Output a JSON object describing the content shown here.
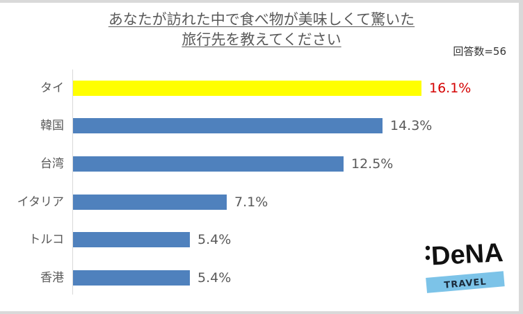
{
  "title": {
    "line1": "あなたが訪れた中で食べ物が美味しくて驚いた",
    "line2": "旅行先を教えてください"
  },
  "respondents_label": "回答数=56",
  "logo": {
    "brand": ":DeNA",
    "sub": "TRAVEL"
  },
  "colors": {
    "highlight_bar": "#ffff00",
    "default_bar": "#4f81bd",
    "highlight_label": "#d40000",
    "default_label": "#595959"
  },
  "bars": [
    {
      "label": "タイ",
      "value": 16.1,
      "display": "16.1%",
      "highlight": true
    },
    {
      "label": "韓国",
      "value": 14.3,
      "display": "14.3%",
      "highlight": false
    },
    {
      "label": "台湾",
      "value": 12.5,
      "display": "12.5%",
      "highlight": false
    },
    {
      "label": "イタリア",
      "value": 7.1,
      "display": "7.1%",
      "highlight": false
    },
    {
      "label": "トルコ",
      "value": 5.4,
      "display": "5.4%",
      "highlight": false
    },
    {
      "label": "香港",
      "value": 5.4,
      "display": "5.4%",
      "highlight": false
    }
  ],
  "chart_data": {
    "type": "bar",
    "orientation": "horizontal",
    "title": "あなたが訪れた中で食べ物が美味しくて驚いた旅行先を教えてください",
    "subtitle": "回答数=56",
    "categories": [
      "タイ",
      "韓国",
      "台湾",
      "イタリア",
      "トルコ",
      "香港"
    ],
    "values": [
      16.1,
      14.3,
      12.5,
      7.1,
      5.4,
      5.4
    ],
    "unit": "%",
    "xlabel": "",
    "ylabel": "",
    "grid": false,
    "legend": null,
    "highlighted_category": "タイ"
  }
}
